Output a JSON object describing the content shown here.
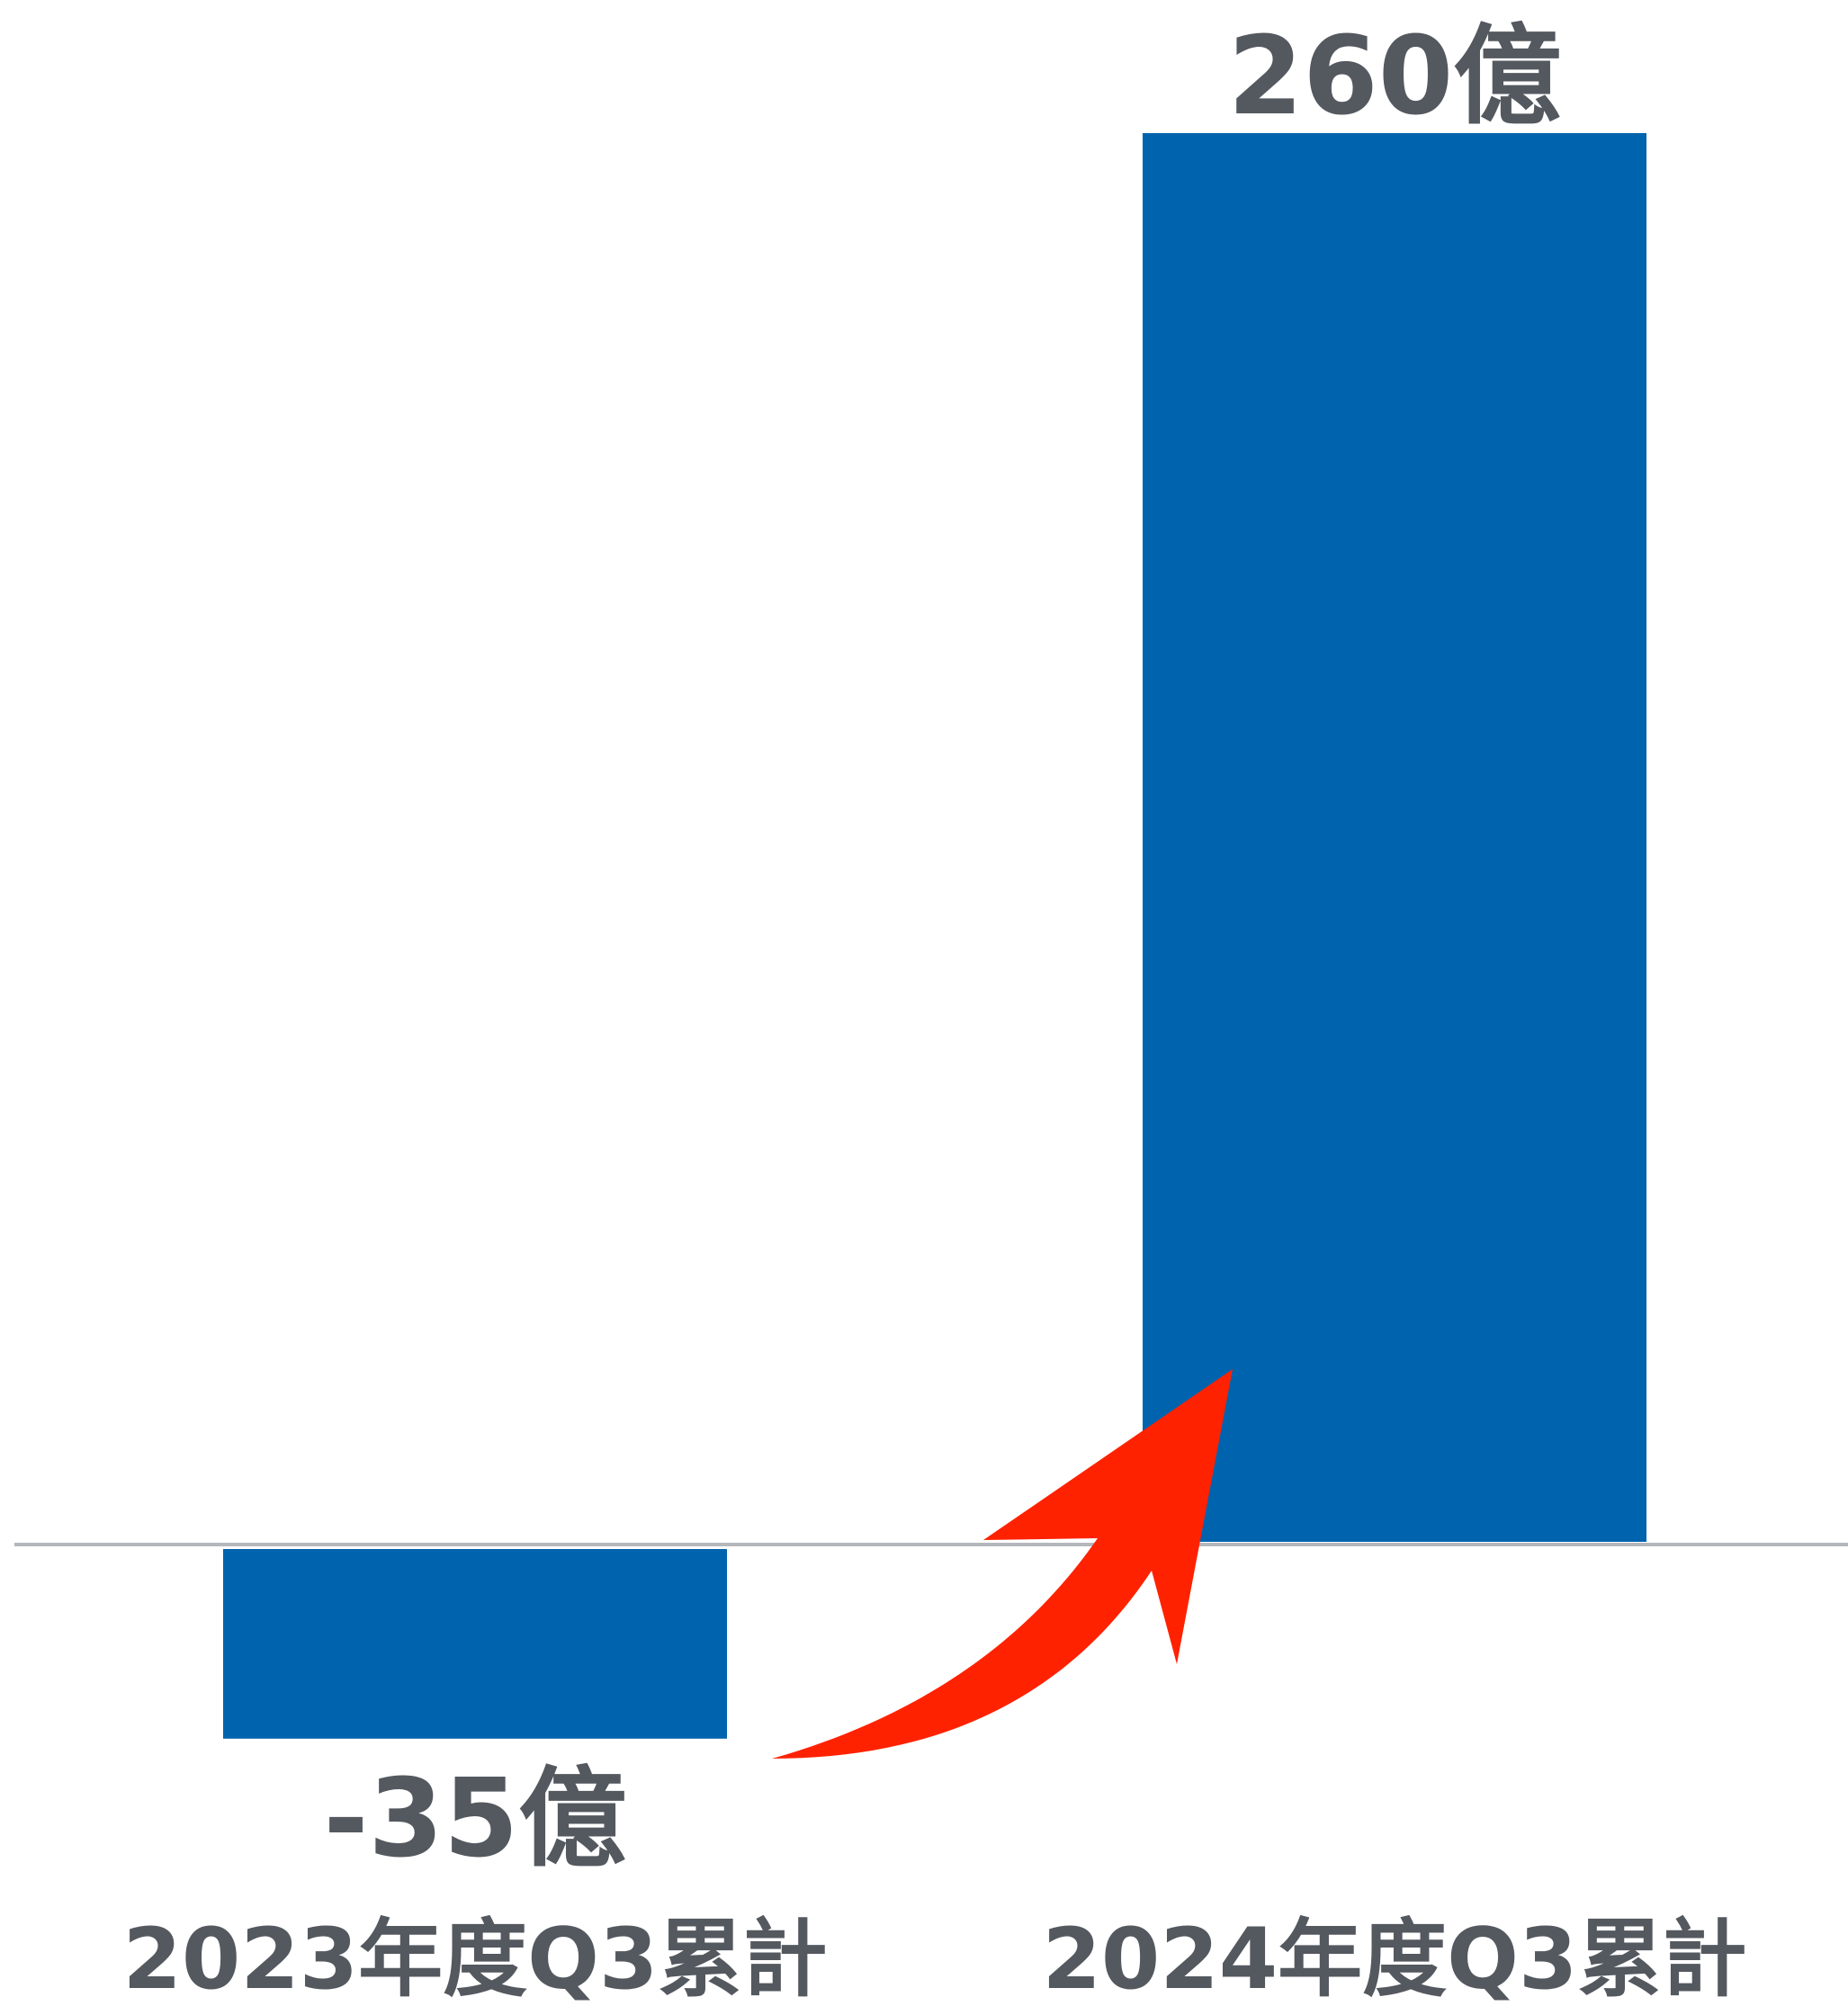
{
  "chart_data": {
    "type": "bar",
    "categories": [
      "2023年度Q3累計",
      "2024年度Q3累計"
    ],
    "values": [
      -35,
      260
    ],
    "data_labels": [
      "-35億",
      "260億"
    ],
    "unit": "億",
    "ylim": [
      -35,
      260
    ],
    "grid": false,
    "legend": "none",
    "bar_color": "#0063ae",
    "baseline_color": "#b4b7bb",
    "arrow_color": "#ff2200"
  }
}
